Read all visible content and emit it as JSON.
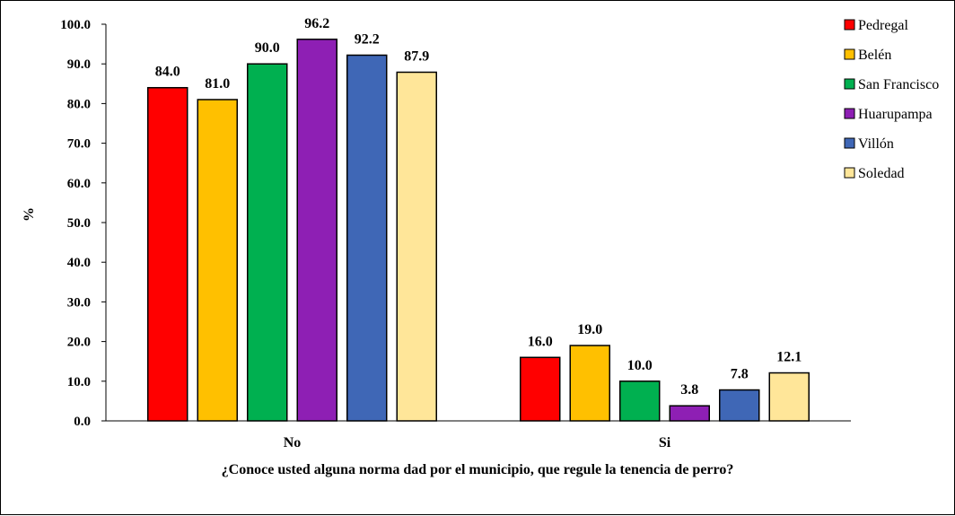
{
  "chart_data": {
    "type": "bar",
    "title": "",
    "xlabel": "¿Conoce usted alguna norma dad por el municipio, que regule la tenencia de perro?",
    "ylabel": "%",
    "ylim": [
      0,
      100
    ],
    "yticks": [
      "0.0",
      "10.0",
      "20.0",
      "30.0",
      "40.0",
      "50.0",
      "60.0",
      "70.0",
      "80.0",
      "90.0",
      "100.0"
    ],
    "grid": false,
    "legend_position": "right",
    "categories": [
      "No",
      "Si"
    ],
    "series": [
      {
        "name": "Pedregal",
        "color": "#ff0000",
        "values": [
          84.0,
          16.0
        ],
        "labels": [
          "84.0",
          "16.0"
        ]
      },
      {
        "name": "Belén",
        "color": "#ffc000",
        "values": [
          81.0,
          19.0
        ],
        "labels": [
          "81.0",
          "19.0"
        ]
      },
      {
        "name": "San Francisco",
        "color": "#00b050",
        "values": [
          90.0,
          10.0
        ],
        "labels": [
          "90.0",
          "10.0"
        ]
      },
      {
        "name": "Huarupampa",
        "color": "#8e1fb4",
        "values": [
          96.2,
          3.8
        ],
        "labels": [
          "96.2",
          "3.8"
        ]
      },
      {
        "name": "Villón",
        "color": "#3f67b6",
        "values": [
          92.2,
          7.8
        ],
        "labels": [
          "92.2",
          "7.8"
        ]
      },
      {
        "name": "Soledad",
        "color": "#ffe699",
        "values": [
          87.9,
          12.1
        ],
        "labels": [
          "87.9",
          "12.1"
        ]
      }
    ]
  }
}
